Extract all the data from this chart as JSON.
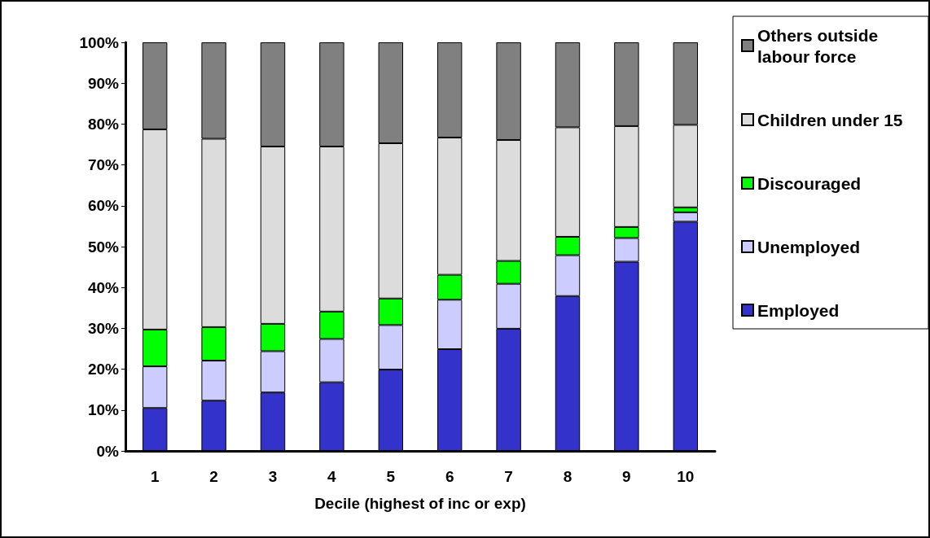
{
  "chart_data": {
    "type": "bar",
    "stacked": true,
    "xlabel": "Decile (highest of inc or exp)",
    "categories": [
      "1",
      "2",
      "3",
      "4",
      "5",
      "6",
      "7",
      "8",
      "9",
      "10"
    ],
    "series": [
      {
        "name": "Employed",
        "color": "#3333cc",
        "values": [
          10.5,
          12.3,
          14.3,
          16.8,
          19.9,
          24.9,
          29.9,
          37.9,
          46.3,
          56.1
        ]
      },
      {
        "name": "Unemployed",
        "color": "#ccccff",
        "values": [
          10.2,
          9.8,
          10.1,
          10.6,
          10.9,
          12.1,
          11.0,
          10.0,
          5.8,
          2.3
        ]
      },
      {
        "name": "Discouraged",
        "color": "#00ff00",
        "values": [
          9.0,
          8.2,
          6.7,
          6.7,
          6.5,
          6.1,
          5.6,
          4.5,
          2.7,
          1.2
        ]
      },
      {
        "name": "Children under 15",
        "color": "#dcdcdc",
        "values": [
          49.0,
          46.1,
          43.4,
          40.4,
          38.0,
          33.6,
          29.6,
          26.8,
          24.7,
          20.2
        ]
      },
      {
        "name": "Others outside labour force",
        "color": "#808080",
        "values": [
          21.3,
          23.6,
          25.5,
          25.5,
          24.7,
          23.3,
          23.9,
          20.8,
          20.5,
          20.2
        ]
      }
    ],
    "ylim": [
      0,
      100
    ],
    "yticks": [
      {
        "value": 0,
        "label": "0%"
      },
      {
        "value": 10,
        "label": "10%"
      },
      {
        "value": 20,
        "label": "20%"
      },
      {
        "value": 30,
        "label": "30%"
      },
      {
        "value": 40,
        "label": "40%"
      },
      {
        "value": 50,
        "label": "50%"
      },
      {
        "value": 60,
        "label": "60%"
      },
      {
        "value": 70,
        "label": "70%"
      },
      {
        "value": 80,
        "label": "80%"
      },
      {
        "value": 90,
        "label": "90%"
      },
      {
        "value": 100,
        "label": "100%"
      }
    ],
    "grid": false,
    "legend": "right"
  }
}
